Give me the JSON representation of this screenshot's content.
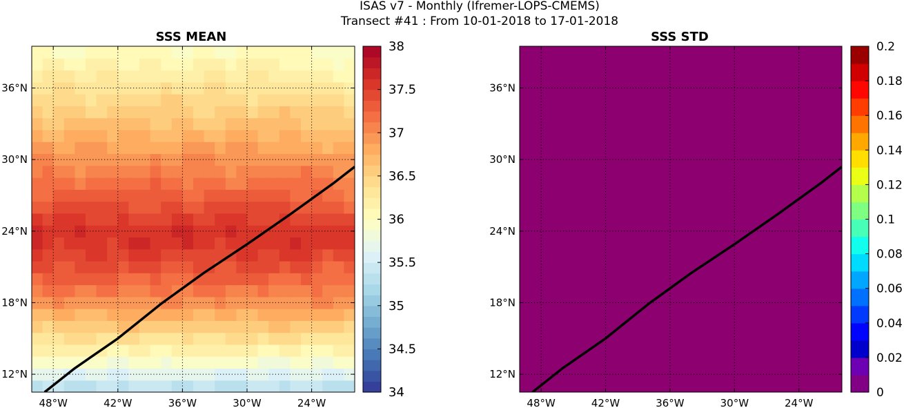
{
  "figure": {
    "title_line1": "ISAS v7 - Monthly (Ifremer-LOPS-CMEMS)",
    "title_line2": "Transect #41 : From 10-01-2018 to 17-01-2018"
  },
  "chart_data": [
    {
      "type": "heatmap",
      "title": "SSS MEAN",
      "lat_ticks": [
        "12°N",
        "18°N",
        "24°N",
        "30°N",
        "36°N"
      ],
      "lon_ticks": [
        "48°W",
        "42°W",
        "36°W",
        "30°W",
        "24°W"
      ],
      "lat_tick_values": [
        12,
        18,
        24,
        30,
        36
      ],
      "lon_tick_values": [
        -48,
        -42,
        -36,
        -30,
        -24
      ],
      "lon_range": [
        -50,
        -20
      ],
      "lat_range": [
        10.5,
        39.5
      ],
      "grid": "dotted",
      "colorbar": {
        "colormap": "RdYlBu_r",
        "levels": 32,
        "range": [
          34,
          38
        ],
        "tick_labels": [
          "34",
          "34.5",
          "35",
          "35.5",
          "36",
          "36.5",
          "37",
          "37.5",
          "38"
        ],
        "tick_values": [
          34,
          34.5,
          35,
          35.5,
          36,
          36.5,
          37,
          37.5,
          38
        ]
      },
      "transect": {
        "lon": [
          -48.8,
          -46,
          -42,
          -38,
          -34,
          -30,
          -26,
          -22,
          -20
        ],
        "lat": [
          10.5,
          12.5,
          15.0,
          17.9,
          20.5,
          22.9,
          25.4,
          28.0,
          29.4
        ]
      }
    },
    {
      "type": "heatmap",
      "title": "SSS STD",
      "lat_ticks": [
        "12°N",
        "18°N",
        "24°N",
        "30°N",
        "36°N"
      ],
      "lon_ticks": [
        "48°W",
        "42°W",
        "36°W",
        "30°W",
        "24°W"
      ],
      "lat_tick_values": [
        12,
        18,
        24,
        30,
        36
      ],
      "lon_tick_values": [
        -48,
        -42,
        -36,
        -30,
        -24
      ],
      "lon_range": [
        -50,
        -20
      ],
      "lat_range": [
        10.5,
        39.5
      ],
      "grid": "dotted",
      "field_value": 0,
      "field_color": "#8C006F",
      "colorbar": {
        "colormap": "jet",
        "levels": 20,
        "range": [
          0,
          0.2
        ],
        "tick_labels": [
          "0",
          "0.02",
          "0.04",
          "0.06",
          "0.08",
          "0.1",
          "0.12",
          "0.14",
          "0.16",
          "0.18",
          "0.2"
        ],
        "tick_values": [
          0,
          0.02,
          0.04,
          0.06,
          0.08,
          0.1,
          0.12,
          0.14,
          0.16,
          0.18,
          0.2
        ]
      },
      "transect": {
        "lon": [
          -48.8,
          -46,
          -42,
          -38,
          -34,
          -30,
          -26,
          -22,
          -20
        ],
        "lat": [
          10.5,
          12.5,
          15.0,
          17.9,
          20.5,
          22.9,
          25.4,
          28.0,
          29.4
        ]
      }
    }
  ]
}
